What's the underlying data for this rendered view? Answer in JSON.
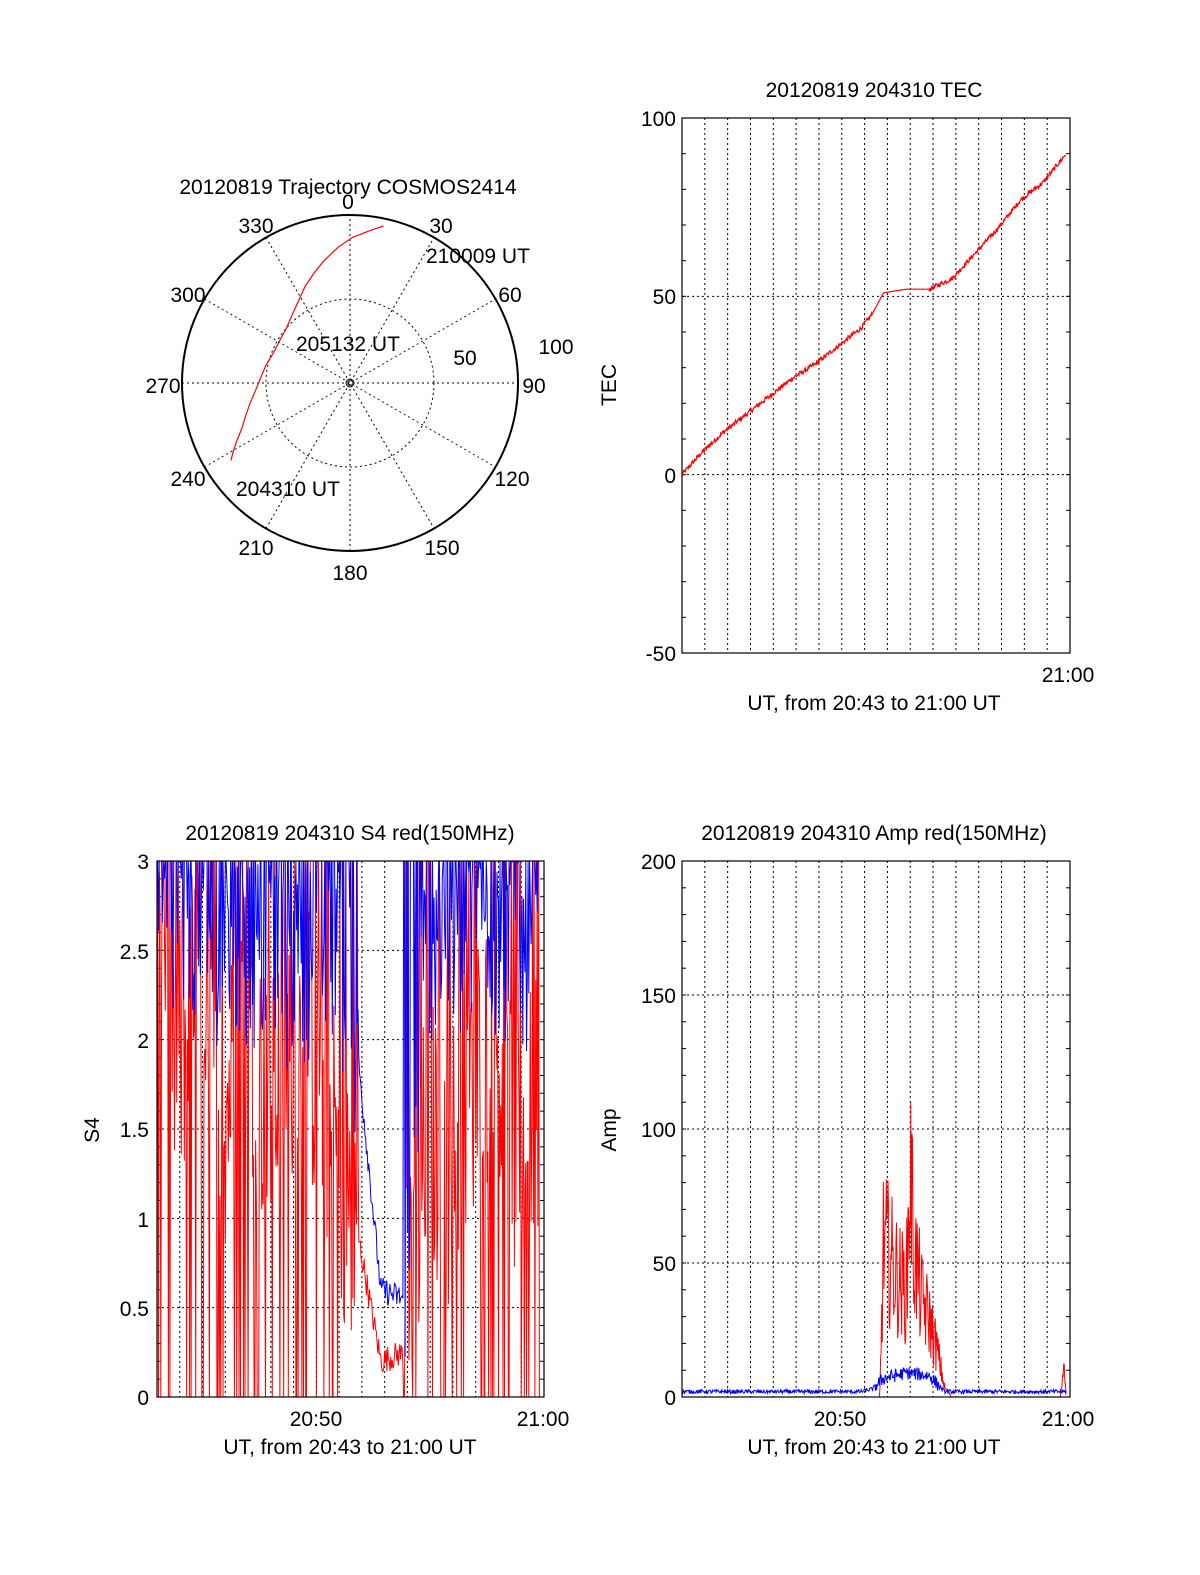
{
  "chart_data": [
    {
      "type": "polar",
      "id": "trajectory",
      "title": "20120819 Trajectory COSMOS2414",
      "azimuth_labels": [
        "0",
        "30",
        "60",
        "90",
        "120",
        "150",
        "180",
        "210",
        "240",
        "270",
        "300",
        "330"
      ],
      "radial_labels": [
        "50",
        "100"
      ],
      "series": [
        {
          "color": "#ff0000",
          "points": [
            {
              "az": 237,
              "el": 14
            },
            {
              "az": 240,
              "el": 18
            },
            {
              "az": 243,
              "el": 22
            },
            {
              "az": 247,
              "el": 27
            },
            {
              "az": 252,
              "el": 31
            },
            {
              "az": 258,
              "el": 35
            },
            {
              "az": 265,
              "el": 39
            },
            {
              "az": 273,
              "el": 42
            },
            {
              "az": 282,
              "el": 44
            },
            {
              "az": 292,
              "el": 46
            },
            {
              "az": 302,
              "el": 46
            },
            {
              "az": 311,
              "el": 45
            },
            {
              "az": 320,
              "el": 42
            },
            {
              "az": 328,
              "el": 38
            },
            {
              "az": 335,
              "el": 33
            },
            {
              "az": 342,
              "el": 28
            },
            {
              "az": 348,
              "el": 23
            },
            {
              "az": 355,
              "el": 17
            },
            {
              "az": 1,
              "el": 12
            },
            {
              "az": 7,
              "el": 8
            },
            {
              "az": 12,
              "el": 4
            }
          ]
        }
      ],
      "annotations": [
        "210009 UT",
        "205132 UT",
        "204310 UT"
      ]
    },
    {
      "type": "line",
      "id": "tec",
      "title": "20120819 204310 TEC",
      "xlabel": "UT, from 20:43 to 21:00 UT",
      "ylabel": "TEC",
      "ylim": [
        -50,
        100
      ],
      "yticks": [
        "100",
        "50",
        "0",
        "-50"
      ],
      "xtick_labels": [
        "21:00"
      ],
      "series": [
        {
          "color": "#ff0000",
          "x": [
            "20:43:10",
            "20:44:00",
            "20:45:00",
            "20:46:00",
            "20:47:00",
            "20:48:00",
            "20:49:00",
            "20:50:00",
            "20:51:00",
            "20:51:30",
            "20:52:00",
            "20:53:00",
            "20:54:00",
            "20:55:00",
            "20:56:00",
            "20:57:00",
            "20:58:00",
            "20:59:00",
            "21:00:00"
          ],
          "y": [
            0,
            6,
            12,
            17,
            22,
            27,
            31,
            36,
            41,
            45,
            51,
            52,
            52,
            55,
            62,
            69,
            77,
            82,
            90
          ]
        }
      ]
    },
    {
      "type": "line",
      "id": "s4",
      "title": "20120819 204310 S4 red(150MHz)",
      "xlabel": "UT, from 20:43 to 21:00 UT",
      "ylabel": "S4",
      "ylim": [
        0,
        3
      ],
      "yticks": [
        "3",
        "2.5",
        "2",
        "1.5",
        "1",
        "0.5",
        "0"
      ],
      "xtick_labels": [
        "20:50",
        "21:00"
      ],
      "series": [
        {
          "color": "#ff0000",
          "x": [
            "20:43:10",
            "20:44:00",
            "20:45:00",
            "20:46:00",
            "20:47:00",
            "20:48:00",
            "20:49:00",
            "20:50:00",
            "20:51:00",
            "20:52:00",
            "20:53:00",
            "20:54:00",
            "20:55:00",
            "20:56:00",
            "20:57:00",
            "20:58:00",
            "20:59:00",
            "21:00:00"
          ],
          "y": [
            2.5,
            1.8,
            2.4,
            1.5,
            2.2,
            1.6,
            2.0,
            1.9,
            1.4,
            0.9,
            0.2,
            0.25,
            1.5,
            1.3,
            1.8,
            2.0,
            1.3,
            1.7
          ]
        },
        {
          "color": "#0000ff",
          "x": [
            "20:43:10",
            "20:44:00",
            "20:45:00",
            "20:46:00",
            "20:47:00",
            "20:48:00",
            "20:49:00",
            "20:50:00",
            "20:51:00",
            "20:52:00",
            "20:53:00",
            "20:54:00",
            "20:55:00",
            "20:56:00",
            "20:57:00",
            "20:58:00",
            "20:59:00",
            "21:00:00"
          ],
          "y": [
            2.7,
            2.6,
            2.4,
            2.6,
            2.5,
            2.5,
            2.4,
            2.5,
            2.6,
            1.9,
            0.6,
            0.55,
            2.6,
            2.5,
            2.6,
            2.5,
            2.4,
            2.7
          ]
        }
      ]
    },
    {
      "type": "line",
      "id": "amp",
      "title": "20120819 204310 Amp red(150MHz)",
      "xlabel": "UT, from 20:43 to 21:00 UT",
      "ylabel": "Amp",
      "ylim": [
        0,
        200
      ],
      "yticks": [
        "200",
        "150",
        "100",
        "50",
        "0"
      ],
      "xtick_labels": [
        "20:50",
        "21:00"
      ],
      "series": [
        {
          "color": "#ff0000",
          "x": [
            "20:43:10",
            "20:51:50",
            "20:52:00",
            "20:52:20",
            "20:52:40",
            "20:53:00",
            "20:53:10",
            "20:53:20",
            "20:53:40",
            "20:54:00",
            "20:54:20",
            "20:54:40",
            "20:55:00",
            "20:59:45",
            "20:59:55",
            "21:00:00"
          ],
          "y": [
            0,
            0,
            80,
            70,
            60,
            55,
            120,
            75,
            50,
            40,
            25,
            5,
            0,
            0,
            20,
            0
          ]
        },
        {
          "color": "#0000ff",
          "x": [
            "20:43:10",
            "20:47:00",
            "20:51:00",
            "20:51:30",
            "20:52:00",
            "20:53:00",
            "20:54:00",
            "20:54:40",
            "20:57:00",
            "20:59:00",
            "21:00:00"
          ],
          "y": [
            2,
            2,
            2,
            3,
            7,
            9,
            8,
            2,
            2,
            2,
            2
          ]
        }
      ]
    }
  ]
}
